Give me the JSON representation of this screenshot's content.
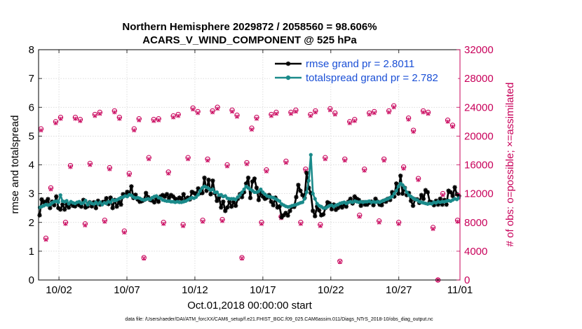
{
  "chart_data": {
    "type": "line",
    "title_line1": "Northern Hemisphere 2029872 / 2058560 = 98.606%",
    "title_line2": "ACARS_V_WIND_COMPONENT @ 525 hPa",
    "xlabel": "Oct.01,2018 00:00:00 start",
    "ylabel": "rmse and totalspread",
    "ylabel_right": "# of obs: o=possible; ×=assimilated",
    "footnote": "data file: /Users/raeder/DAI/ATM_forcXX/CAM6_setup/f.e21.FHIST_BGC.f09_025.CAM6assim.011/Diags_NTrS_2018-10/obs_diag_output.nc",
    "xlim": [
      0.5,
      31.5
    ],
    "ylim": [
      0,
      8
    ],
    "ylim_right": [
      0,
      32000
    ],
    "x_ticks": [
      2,
      7,
      12,
      17,
      22,
      27,
      31.5
    ],
    "x_tick_labels": [
      "10/02",
      "10/07",
      "10/12",
      "10/17",
      "10/22",
      "10/27",
      "11/01"
    ],
    "y_ticks": [
      0,
      1,
      2,
      3,
      4,
      5,
      6,
      7,
      8
    ],
    "y_tick_labels": [
      "0",
      "1",
      "2",
      "3",
      "4",
      "5",
      "6",
      "7",
      "8"
    ],
    "y_right_ticks": [
      0,
      4000,
      8000,
      12000,
      16000,
      20000,
      24000,
      28000,
      32000
    ],
    "y_right_tick_labels": [
      "0",
      "4000",
      "8000",
      "12000",
      "16000",
      "20000",
      "24000",
      "28000",
      "32000"
    ],
    "legend_position": "top-right",
    "colors": {
      "rmse": "#000000",
      "spread": "#1a8a8a",
      "obs": "#c8005a",
      "legend_text": "#1a4fd6",
      "grid": "#d0d0d0"
    },
    "series": [
      {
        "name": "rmse grand pr = 2.8011",
        "key": "rmse",
        "values": [
          2.25,
          2.8,
          2.7,
          2.72,
          2.81,
          2.5,
          2.72,
          2.6,
          2.9,
          2.5,
          2.45,
          2.62,
          2.45,
          2.62,
          2.52,
          2.68,
          2.58,
          2.56,
          2.66,
          2.6,
          2.55,
          2.78,
          2.52,
          2.56,
          2.7,
          2.56,
          2.7,
          2.5,
          2.75,
          2.62,
          2.7,
          2.72,
          2.84,
          2.64,
          2.86,
          2.5,
          2.78,
          2.55,
          2.72,
          2.62,
          2.98,
          2.95,
          3.06,
          2.98,
          3.25,
          2.85,
          2.96,
          2.8,
          2.72,
          2.74,
          2.78,
          3.02,
          2.88,
          2.78,
          2.76,
          2.7,
          2.82,
          2.72,
          2.9,
          2.95,
          2.9,
          2.98,
          2.85,
          2.95,
          2.9,
          2.82,
          2.8,
          2.86,
          2.82,
          2.98,
          2.78,
          2.86,
          2.8,
          3.06,
          3.02,
          2.98,
          3.18,
          3.02,
          3.02,
          3.55,
          3.1,
          3.48,
          2.98,
          3.45,
          3.02,
          2.75,
          2.88,
          2.52,
          2.72,
          2.4,
          2.52,
          2.72,
          2.55,
          2.7,
          2.58,
          2.82,
          2.98,
          2.88,
          3.05,
          3.35,
          3.55,
          2.85,
          3.42,
          3.52,
          3.2,
          2.78,
          3.02,
          2.9,
          2.82,
          2.86,
          2.95,
          2.72,
          2.6,
          2.86,
          2.52,
          2.56,
          2.18,
          2.25,
          2.33,
          2.24,
          2.4,
          2.55,
          2.54,
          2.88,
          3.3,
          3.1,
          2.95,
          2.85,
          3.72,
          3.2,
          3.02,
          2.4,
          2.22,
          2.55,
          2.42,
          2.25,
          2.28,
          2.5,
          2.7,
          2.66,
          2.46,
          2.62,
          2.44,
          2.5,
          2.6,
          2.52,
          2.64,
          2.55,
          2.72,
          2.82,
          2.66,
          2.9,
          2.82,
          2.78,
          2.58,
          2.7,
          2.62,
          2.62,
          2.68,
          2.72,
          2.6,
          2.82,
          2.72,
          2.62,
          2.6,
          2.75,
          2.72,
          2.82,
          2.78,
          3.05,
          2.9,
          3.35,
          3.0,
          3.62,
          3.0,
          3.2,
          2.95,
          3.02,
          2.75,
          2.58,
          2.8,
          2.8,
          2.68,
          2.95,
          2.82,
          3.12,
          3.05,
          2.72,
          2.7,
          2.6,
          2.75,
          2.62,
          2.82,
          2.62,
          2.78,
          2.62,
          3.1,
          3.05,
          2.92,
          3.22,
          2.98,
          2.92
        ]
      },
      {
        "name": "totalspread grand pr = 2.782",
        "key": "spread",
        "values": [
          2.52,
          2.55,
          2.58,
          2.62,
          2.6,
          2.62,
          2.68,
          2.72,
          2.74,
          2.7,
          2.95,
          2.74,
          2.72,
          2.75,
          2.65,
          2.72,
          2.68,
          2.66,
          2.7,
          2.72,
          2.66,
          2.68,
          2.76,
          2.62,
          2.7,
          2.66,
          2.64,
          2.7,
          2.64,
          2.7,
          2.62,
          2.68,
          2.66,
          2.72,
          2.7,
          2.78,
          2.76,
          2.78,
          2.82,
          2.86,
          2.88,
          2.92,
          2.9,
          2.96,
          2.94,
          2.88,
          2.85,
          2.86,
          2.84,
          2.8,
          2.78,
          2.8,
          2.82,
          2.8,
          2.86,
          2.9,
          2.92,
          2.86,
          2.84,
          2.78,
          2.76,
          2.74,
          2.74,
          2.72,
          2.72,
          2.7,
          2.72,
          2.7,
          2.7,
          2.72,
          2.74,
          2.78,
          2.82,
          2.86,
          2.84,
          2.88,
          2.96,
          3.1,
          3.2,
          3.25,
          3.22,
          3.18,
          3.12,
          3.15,
          3.05,
          3.05,
          2.95,
          2.96,
          2.9,
          2.92,
          2.84,
          2.82,
          2.82,
          2.82,
          2.8,
          2.88,
          2.95,
          3.05,
          3.15,
          3.25,
          3.2,
          3.15,
          3.1,
          3.05,
          3.05,
          3.08,
          3.15,
          3.05,
          2.98,
          2.92,
          2.9,
          2.88,
          2.86,
          2.82,
          2.78,
          2.74,
          2.64,
          2.6,
          2.56,
          2.54,
          2.55,
          2.58,
          2.6,
          2.62,
          2.65,
          2.68,
          2.7,
          2.82,
          3.05,
          3.45,
          4.35,
          3.0,
          2.82,
          2.65,
          2.58,
          2.55,
          2.5,
          2.5,
          2.54,
          2.58,
          2.6,
          2.55,
          2.6,
          2.62,
          2.66,
          2.68,
          2.7,
          2.66,
          2.7,
          2.72,
          2.7,
          2.74,
          2.72,
          2.7,
          2.72,
          2.7,
          2.72,
          2.72,
          2.74,
          2.7,
          2.72,
          2.7,
          2.72,
          2.7,
          2.74,
          2.76,
          2.8,
          2.82,
          2.86,
          2.9,
          3.0,
          3.1,
          3.25,
          3.35,
          3.3,
          3.2,
          3.05,
          2.95,
          2.9,
          2.85,
          2.8,
          2.78,
          2.72,
          2.7,
          2.68,
          2.66,
          2.64,
          2.66,
          2.65,
          2.7,
          2.68,
          2.72,
          2.7,
          2.72,
          2.72,
          2.74,
          2.76,
          2.74,
          2.78,
          2.82,
          2.8,
          2.85
        ]
      }
    ],
    "obs_series": [
      {
        "name": "obs possible",
        "marker": "circle",
        "values": [
          21000,
          5800,
          12800,
          22000,
          22600,
          8000,
          15900,
          22600,
          22300,
          7800,
          16200,
          23000,
          23300,
          8300,
          15600,
          23500,
          22600,
          6800,
          14800,
          21000,
          22400,
          3100,
          17000,
          22300,
          22400,
          8000,
          15000,
          22800,
          23000,
          7700,
          17000,
          23900,
          23400,
          8300,
          16800,
          23500,
          24000,
          8400,
          16000,
          23600,
          22900,
          3100,
          16300,
          21100,
          22600,
          8000,
          15300,
          23000,
          23300,
          8800,
          16500,
          23300,
          23600,
          8000,
          15400,
          23000,
          23500,
          7700,
          17000,
          23800,
          23200,
          2600,
          16800,
          22000,
          22300,
          9000,
          15400,
          23200,
          23400,
          8200,
          16800,
          23500,
          24200,
          8000,
          15700,
          22500,
          20800,
          14100,
          23500,
          23300,
          7300,
          0,
          12000,
          22200,
          21500,
          8300
        ]
      },
      {
        "name": "obs assimilated",
        "marker": "x",
        "values": [
          20800,
          5600,
          12600,
          21800,
          22400,
          7800,
          15700,
          22400,
          22100,
          7600,
          16000,
          22800,
          23100,
          8100,
          15400,
          23300,
          22400,
          6600,
          14600,
          20800,
          22200,
          3000,
          16800,
          22100,
          22200,
          7800,
          14800,
          22600,
          22800,
          7500,
          16800,
          23700,
          23200,
          8100,
          16600,
          23300,
          23800,
          8200,
          15800,
          23400,
          22700,
          3000,
          16100,
          20900,
          22400,
          7800,
          15100,
          22800,
          23100,
          8600,
          16300,
          23100,
          23400,
          7800,
          15200,
          22800,
          23300,
          7500,
          16800,
          23600,
          23000,
          2500,
          16600,
          21800,
          22100,
          8800,
          15200,
          23000,
          23200,
          8000,
          16600,
          23300,
          24000,
          7800,
          15500,
          22300,
          20600,
          13900,
          23300,
          23100,
          7100,
          0,
          11800,
          22000,
          21300,
          8100
        ]
      }
    ]
  }
}
